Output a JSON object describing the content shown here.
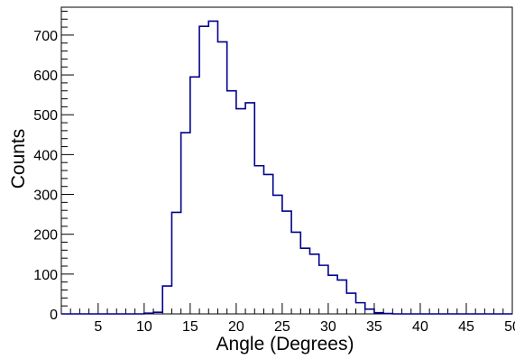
{
  "chart_data": {
    "type": "histogram",
    "title": "",
    "xlabel": "Angle (Degrees)",
    "ylabel": "Counts",
    "xlim": [
      1,
      50
    ],
    "ylim": [
      0,
      770
    ],
    "x_major_ticks": [
      5,
      10,
      15,
      20,
      25,
      30,
      35,
      40,
      45,
      50
    ],
    "x_tick_labels": [
      "5",
      "10",
      "15",
      "20",
      "25",
      "30",
      "35",
      "40",
      "45",
      "50"
    ],
    "y_major_ticks": [
      0,
      100,
      200,
      300,
      400,
      500,
      600,
      700
    ],
    "y_tick_labels": [
      "0",
      "100",
      "200",
      "300",
      "400",
      "500",
      "600",
      "700"
    ],
    "bin_edges": [
      1,
      2,
      3,
      4,
      5,
      6,
      7,
      8,
      9,
      10,
      11,
      12,
      13,
      14,
      15,
      16,
      17,
      18,
      19,
      20,
      21,
      22,
      23,
      24,
      25,
      26,
      27,
      28,
      29,
      30,
      31,
      32,
      33,
      34,
      35,
      36,
      37,
      38,
      39,
      40,
      41,
      42,
      43,
      44,
      45,
      46,
      47,
      48,
      49,
      50
    ],
    "counts": [
      0,
      0,
      0,
      0,
      0,
      0,
      0,
      0,
      0,
      2,
      4,
      70,
      255,
      455,
      595,
      722,
      735,
      683,
      560,
      515,
      530,
      372,
      350,
      298,
      258,
      205,
      165,
      150,
      122,
      97,
      85,
      52,
      28,
      12,
      3,
      1,
      0,
      0,
      0,
      0,
      0,
      0,
      0,
      0,
      0,
      0,
      0,
      0,
      0
    ],
    "grid": false,
    "legend": "none",
    "colors": {
      "series": "#00008b",
      "axis": "#000000"
    }
  }
}
